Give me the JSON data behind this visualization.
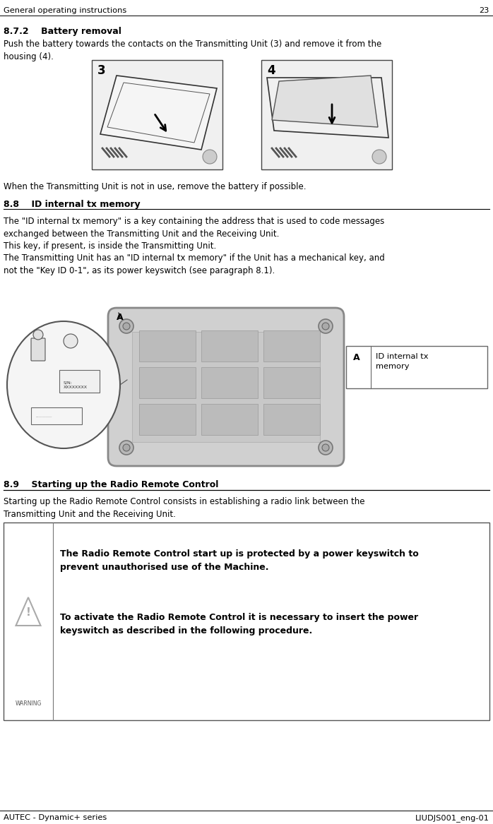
{
  "page_width": 6.98,
  "page_height": 11.67,
  "bg_color": "#ffffff",
  "header_text": "General operating instructions",
  "header_page": "23",
  "footer_left": "AUTEC - Dynamic+ series",
  "footer_right": "LIUDJS001_eng-01",
  "s872_title": "8.7.2    Battery removal",
  "s872_body1": "Push the battery towards the contacts on the Transmitting Unit (3) and remove it from the\nhousing (4).",
  "s872_body2": "When the Transmitting Unit is not in use, remove the battery if possible.",
  "s88_title": "8.8    ID internal tx memory",
  "s88_body": "The \"ID internal tx memory\" is a key containing the address that is used to code messages\nexchanged between the Transmitting Unit and the Receiving Unit.\nThis key, if present, is inside the Transmitting Unit.\nThe Transmitting Unit has an \"ID internal tx memory\" if the Unit has a mechanical key, and\nnot the \"Key ID 0-1\", as its power keyswitch (see paragraph 8.1).",
  "s88_legend_text": "ID internal tx\nmemory",
  "s89_title": "8.9    Starting up the Radio Remote Control",
  "s89_body": "Starting up the Radio Remote Control consists in establishing a radio link between the\nTransmitting Unit and the Receiving Unit.",
  "s89_warn1": "The Radio Remote Control start up is protected by a power keyswitch to\nprevent unauthorised use of the Machine.",
  "s89_warn2": "To activate the Radio Remote Control it is necessary to insert the power\nkeyswitch as described in the following procedure.",
  "warn_label": "WARNING",
  "img3_label": "3",
  "img4_label": "4",
  "legend_A": "A",
  "sn_text": "S/N:\nXXXXXXXX"
}
